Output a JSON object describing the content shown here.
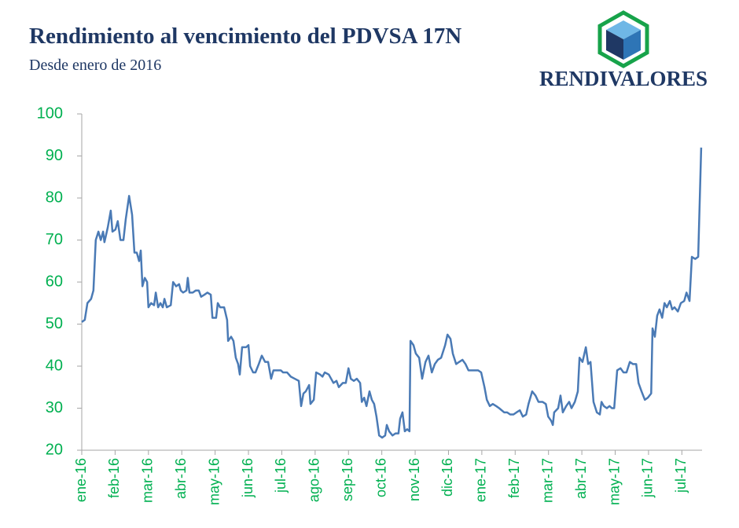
{
  "chart_data": {
    "type": "line",
    "title": "Rendimiento al vencimiento del PDVSA 17N",
    "subtitle": "Desde enero de 2016",
    "color": "#4a7ab5",
    "x": [
      0,
      0.09,
      0.17,
      0.28,
      0.35,
      0.42,
      0.5,
      0.57,
      0.64,
      0.68,
      0.78,
      0.87,
      0.92,
      1.01,
      1.08,
      1.16,
      1.25,
      1.32,
      1.42,
      1.51,
      1.58,
      1.65,
      1.72,
      1.77,
      1.82,
      1.89,
      1.96,
      2.0,
      2.08,
      2.17,
      2.22,
      2.29,
      2.36,
      2.43,
      2.48,
      2.55,
      2.67,
      2.74,
      2.83,
      2.92,
      2.97,
      3.04,
      3.14,
      3.18,
      3.23,
      3.33,
      3.42,
      3.51,
      3.58,
      3.68,
      3.77,
      3.87,
      3.92,
      4.03,
      4.08,
      4.15,
      4.27,
      4.36,
      4.39,
      4.48,
      4.55,
      4.62,
      4.69,
      4.74,
      4.81,
      4.93,
      5.0,
      5.05,
      5.14,
      5.21,
      5.31,
      5.4,
      5.5,
      5.59,
      5.68,
      5.75,
      5.85,
      5.97,
      6.04,
      6.16,
      6.27,
      6.39,
      6.51,
      6.58,
      6.65,
      6.72,
      6.82,
      6.86,
      6.96,
      7.03,
      7.15,
      7.22,
      7.29,
      7.41,
      7.48,
      7.55,
      7.64,
      7.71,
      7.83,
      7.92,
      8.0,
      8.07,
      8.16,
      8.25,
      8.35,
      8.4,
      8.47,
      8.54,
      8.63,
      8.7,
      8.77,
      8.84,
      8.92,
      9.01,
      9.1,
      9.15,
      9.22,
      9.32,
      9.41,
      9.5,
      9.55,
      9.62,
      9.69,
      9.76,
      9.83,
      9.86,
      9.95,
      10.02,
      10.12,
      10.21,
      10.31,
      10.4,
      10.5,
      10.59,
      10.68,
      10.78,
      10.9,
      10.97,
      11.06,
      11.13,
      11.23,
      11.32,
      11.42,
      11.51,
      11.6,
      11.75,
      11.89,
      11.98,
      12.08,
      12.15,
      12.24,
      12.33,
      12.43,
      12.52,
      12.67,
      12.76,
      12.85,
      12.95,
      13.04,
      13.14,
      13.23,
      13.33,
      13.4,
      13.51,
      13.61,
      13.7,
      13.82,
      13.92,
      13.99,
      14.08,
      14.13,
      14.17,
      14.29,
      14.36,
      14.43,
      14.53,
      14.62,
      14.69,
      14.79,
      14.88,
      14.93,
      15.02,
      15.12,
      15.19,
      15.26,
      15.35,
      15.45,
      15.54,
      15.59,
      15.66,
      15.75,
      15.83,
      15.9,
      15.97,
      16.06,
      16.16,
      16.25,
      16.34,
      16.44,
      16.53,
      16.63,
      16.7,
      16.79,
      16.89,
      16.98,
      17.08,
      17.12,
      17.19,
      17.26,
      17.33,
      17.41,
      17.48,
      17.55,
      17.64,
      17.71,
      17.78,
      17.88,
      17.97,
      18.07,
      18.14,
      18.23,
      18.3,
      18.4,
      18.49,
      18.58
    ],
    "values": [
      50.5,
      51,
      55,
      56,
      58,
      70,
      72,
      70,
      72,
      69.5,
      73,
      77,
      72,
      72.5,
      74.5,
      70,
      70,
      75,
      80.5,
      76,
      67,
      67,
      65,
      67.5,
      59,
      61,
      60,
      54,
      55,
      54.5,
      57.5,
      54,
      55,
      54,
      56,
      54,
      54.5,
      60,
      59,
      59.5,
      58,
      57.5,
      58,
      61,
      57.5,
      57.5,
      58,
      58,
      56.5,
      57,
      57.5,
      57,
      51.5,
      51.5,
      55,
      54,
      54,
      51,
      46,
      47,
      46,
      42,
      40.5,
      38,
      44.5,
      44.5,
      45,
      40,
      38.5,
      38.5,
      40.5,
      42.5,
      41,
      41,
      37,
      39,
      39,
      39,
      38.5,
      38.5,
      37.5,
      37,
      36.5,
      30.5,
      33.5,
      34,
      35.5,
      31,
      32,
      38.5,
      38,
      37.5,
      38.5,
      38,
      37,
      36,
      36.5,
      35,
      36,
      36,
      39.5,
      37,
      36.5,
      37,
      36,
      31.5,
      32.5,
      30.5,
      34,
      32,
      31,
      28,
      23.5,
      23,
      23.5,
      26,
      24.5,
      23.5,
      24,
      24,
      27.5,
      29,
      24.5,
      25,
      24.5,
      46,
      45,
      43,
      42,
      37,
      41,
      42.5,
      38.5,
      40.5,
      41.5,
      42,
      45,
      47.5,
      46.5,
      43,
      40.5,
      41,
      41.5,
      40.5,
      39,
      39,
      39,
      38.5,
      35,
      32,
      30.5,
      31,
      30.5,
      30,
      29,
      29,
      28.5,
      28.5,
      29,
      29.5,
      28,
      28.5,
      31,
      34,
      33,
      31.5,
      31.5,
      31,
      28,
      27,
      26,
      29,
      30,
      33,
      29,
      30.5,
      31.5,
      30,
      31.5,
      34,
      42,
      41,
      44.5,
      40.5,
      41,
      31.5,
      29,
      28.5,
      31.5,
      30.5,
      30,
      30.5,
      30,
      30,
      39,
      39.5,
      38.5,
      38.5,
      41,
      40.5,
      40.5,
      36,
      34,
      32,
      32.5,
      33.5,
      49,
      47,
      52,
      53.5,
      51.5,
      55,
      54,
      55.5,
      53.5,
      54,
      53,
      55,
      55.5,
      57.5,
      55.5,
      66,
      65.5,
      66,
      92
    ],
    "xlim": [
      0,
      18.7
    ],
    "xticks": [
      {
        "value": 0,
        "label": "ene-16"
      },
      {
        "value": 1,
        "label": "feb-16"
      },
      {
        "value": 2,
        "label": "mar-16"
      },
      {
        "value": 3,
        "label": "abr-16"
      },
      {
        "value": 4,
        "label": "may-16"
      },
      {
        "value": 5,
        "label": "jun-16"
      },
      {
        "value": 6,
        "label": "jul-16"
      },
      {
        "value": 7,
        "label": "ago-16"
      },
      {
        "value": 8,
        "label": "sep-16"
      },
      {
        "value": 9,
        "label": "oct-16"
      },
      {
        "value": 10,
        "label": "nov-16"
      },
      {
        "value": 11,
        "label": "dic-16"
      },
      {
        "value": 12,
        "label": "ene-17"
      },
      {
        "value": 13,
        "label": "feb-17"
      },
      {
        "value": 14,
        "label": "mar-17"
      },
      {
        "value": 15,
        "label": "abr-17"
      },
      {
        "value": 16,
        "label": "may-17"
      },
      {
        "value": 17,
        "label": "jun-17"
      },
      {
        "value": 18,
        "label": "jul-17"
      }
    ],
    "ylim": [
      20,
      100
    ],
    "yticks": [
      20,
      30,
      40,
      50,
      60,
      70,
      80,
      90,
      100
    ],
    "grid": false
  },
  "logo": {
    "text": "RENDIVALORES"
  }
}
